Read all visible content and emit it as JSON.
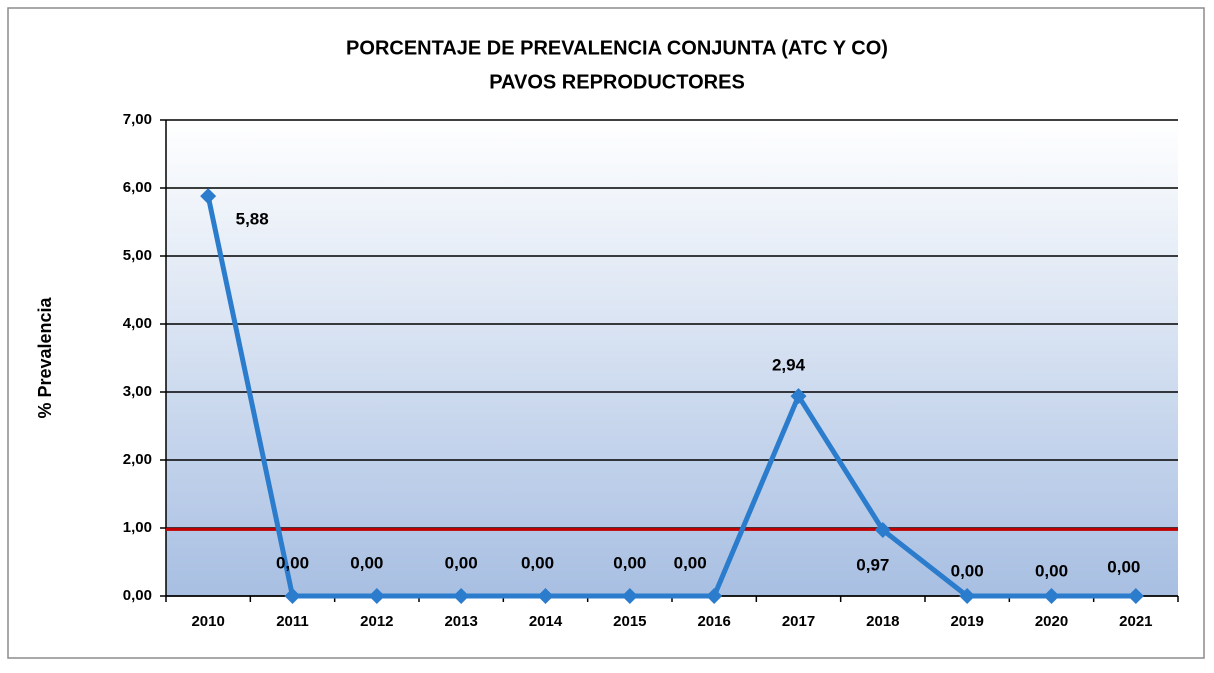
{
  "chart_data": {
    "type": "line",
    "title": "PORCENTAJE DE PREVALENCIA CONJUNTA (ATC Y CO)",
    "subtitle": "PAVOS REPRODUCTORES",
    "y_label": "% Prevalencia",
    "categories": [
      "2010",
      "2011",
      "2012",
      "2013",
      "2014",
      "2015",
      "2016",
      "2017",
      "2018",
      "2019",
      "2020",
      "2021"
    ],
    "values": [
      5.88,
      0,
      0,
      0,
      0,
      0,
      0,
      2.94,
      0.97,
      0,
      0,
      0
    ],
    "value_labels": [
      "5,88",
      "0,00",
      "0,00",
      "0,00",
      "0,00",
      "0,00",
      "0,00",
      "2,94",
      "0,97",
      "0,00",
      "0,00",
      "0,00"
    ],
    "color": "#2b7ccc",
    "ylim": [
      0,
      7
    ],
    "yticks": [
      {
        "value": 0,
        "label": "0,00"
      },
      {
        "value": 1,
        "label": "1,00"
      },
      {
        "value": 2,
        "label": "2,00"
      },
      {
        "value": 3,
        "label": "3,00"
      },
      {
        "value": 4,
        "label": "4,00"
      },
      {
        "value": 5,
        "label": "5,00"
      },
      {
        "value": 6,
        "label": "6,00"
      },
      {
        "value": 7,
        "label": "7,00"
      }
    ],
    "grid": true,
    "reference_line": {
      "value": 0.98,
      "color": "#c00000"
    }
  }
}
